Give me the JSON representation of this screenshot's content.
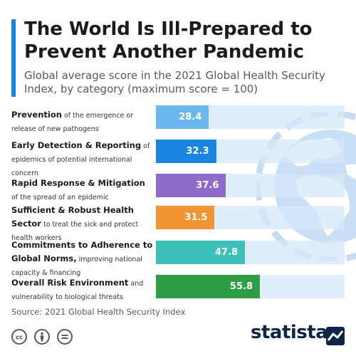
{
  "header": {
    "title": "The World Is Ill-Prepared to Prevent Another Pandemic",
    "subtitle": "Global average score in the 2021 Global Health Security Index, by category (maximum score = 100)"
  },
  "chart_data": {
    "type": "bar",
    "orientation": "horizontal",
    "xlim": [
      0,
      100
    ],
    "categories": [
      {
        "bold": "Prevention",
        "rest": "of the emergence or release of new pathogens"
      },
      {
        "bold": "Early Detection & Reporting",
        "rest": "of epidemics of potential international concern"
      },
      {
        "bold": "Rapid Response & Mitigation",
        "rest": "of the spread of an epidemic"
      },
      {
        "bold": "Sufficient & Robust Health Sector",
        "rest": "to treat the sick and protect health workers"
      },
      {
        "bold": "Commitments to Adherence to Global Norms,",
        "rest": "improving national capacity & financing"
      },
      {
        "bold": "Overall Risk Environment",
        "rest": "and vulnerability to biological threats"
      }
    ],
    "values": [
      28.4,
      32.3,
      37.6,
      31.5,
      47.8,
      55.8
    ],
    "value_labels": [
      "28.4",
      "32.3",
      "37.6",
      "31.5",
      "47.8",
      "55.8"
    ],
    "colors": [
      "#6cb7ee",
      "#1a85e0",
      "#8c6bc9",
      "#f29433",
      "#3dbfbc",
      "#2d9e45"
    ],
    "track_color": "#dbe9f8",
    "grid": false,
    "legend": "none"
  },
  "footer": {
    "source": "Source: 2021 Global Health Security Index",
    "brand": "statista",
    "license_icons": [
      "cc-icon",
      "by-icon",
      "nd-icon"
    ]
  }
}
